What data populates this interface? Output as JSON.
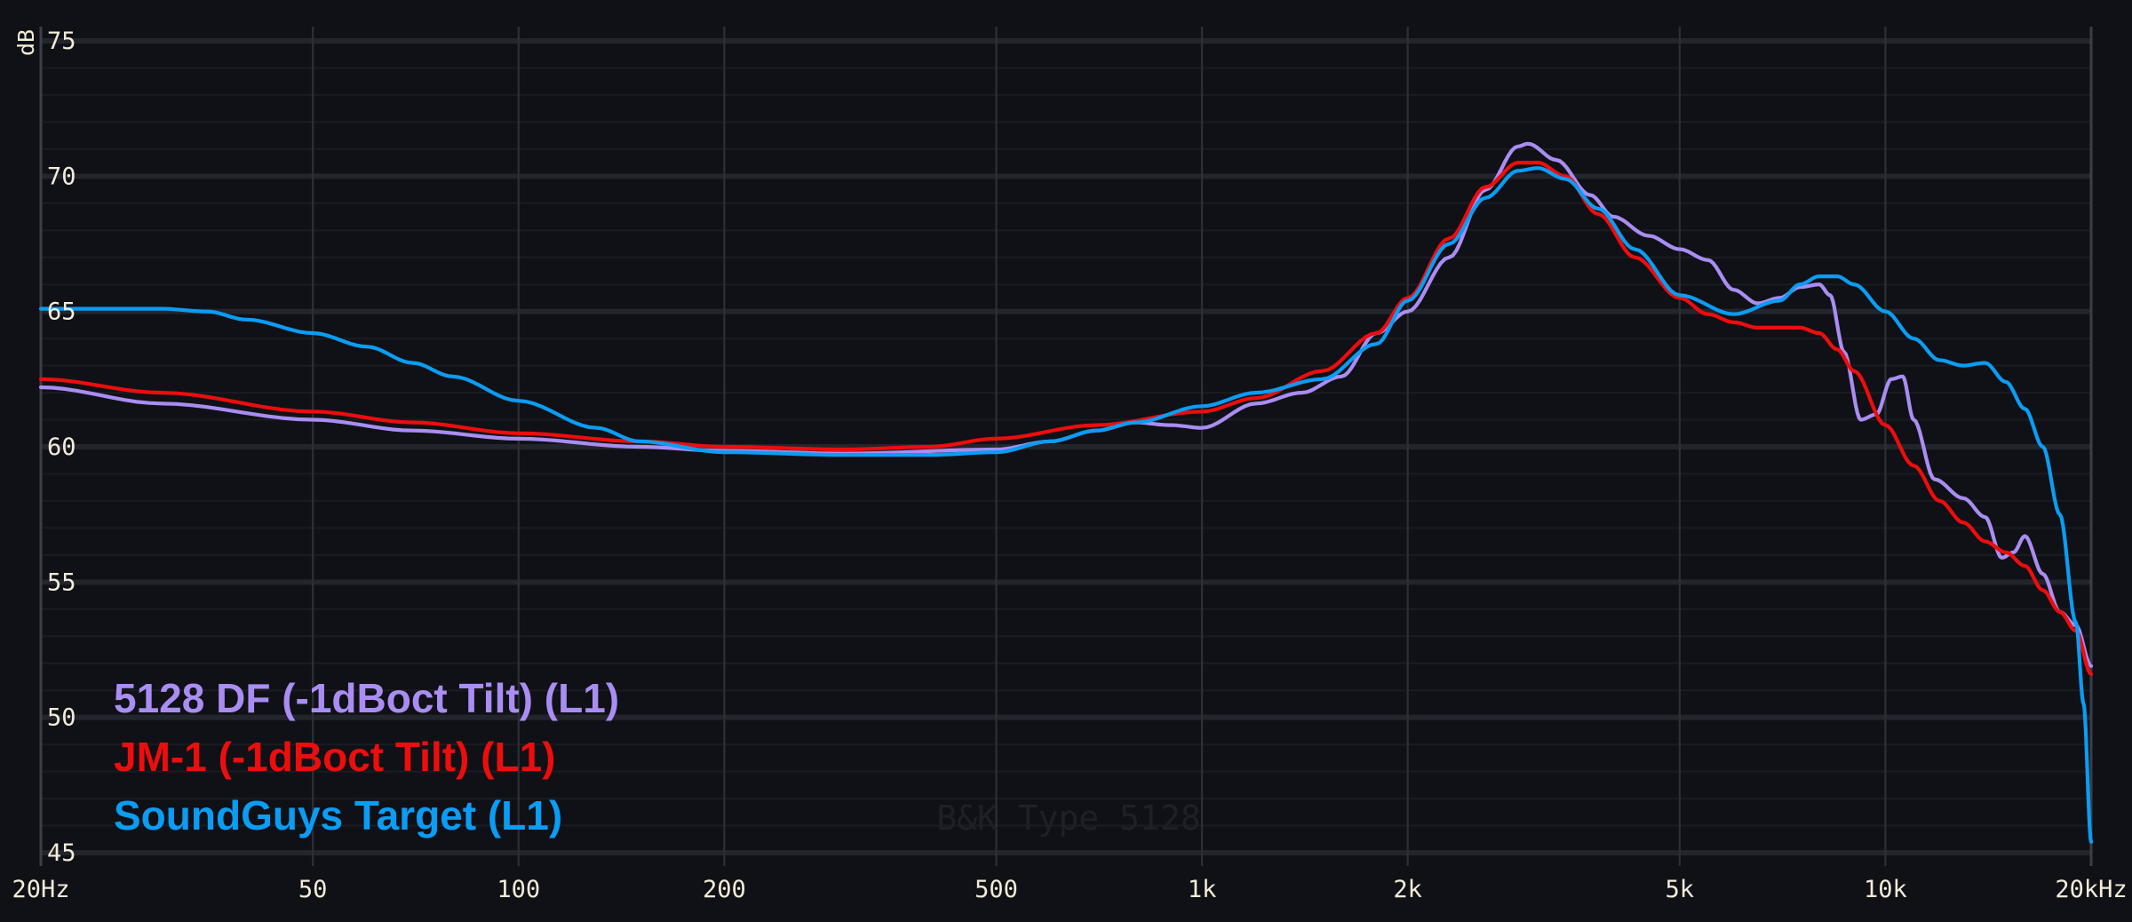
{
  "chart_data": {
    "type": "line",
    "ylabel": "dB",
    "watermark": "B&K Type 5128",
    "xscale": "log",
    "xlim": [
      20,
      20000
    ],
    "ylim": [
      45,
      75
    ],
    "grid": true,
    "legend_position": "bottom-left",
    "x_ticks": [
      {
        "value": 20,
        "label": "20Hz"
      },
      {
        "value": 50,
        "label": "50"
      },
      {
        "value": 100,
        "label": "100"
      },
      {
        "value": 200,
        "label": "200"
      },
      {
        "value": 500,
        "label": "500"
      },
      {
        "value": 1000,
        "label": "1k"
      },
      {
        "value": 2000,
        "label": "2k"
      },
      {
        "value": 5000,
        "label": "5k"
      },
      {
        "value": 10000,
        "label": "10k"
      },
      {
        "value": 20000,
        "label": "20kHz"
      }
    ],
    "y_ticks": [
      {
        "value": 75,
        "label": "75"
      },
      {
        "value": 70,
        "label": "70"
      },
      {
        "value": 65,
        "label": "65"
      },
      {
        "value": 60,
        "label": "60"
      },
      {
        "value": 55,
        "label": "55"
      },
      {
        "value": 50,
        "label": "50"
      },
      {
        "value": 45,
        "label": "45"
      }
    ],
    "series": [
      {
        "name": "5128 DF (-1dBoct Tilt) (L1)",
        "color": "#a98df2",
        "points": [
          [
            20,
            62.2
          ],
          [
            30,
            61.6
          ],
          [
            50,
            61.0
          ],
          [
            70,
            60.6
          ],
          [
            100,
            60.3
          ],
          [
            150,
            60.0
          ],
          [
            200,
            59.85
          ],
          [
            300,
            59.75
          ],
          [
            500,
            59.9
          ],
          [
            600,
            60.2
          ],
          [
            700,
            60.6
          ],
          [
            800,
            60.9
          ],
          [
            900,
            60.8
          ],
          [
            1000,
            60.7
          ],
          [
            1200,
            61.6
          ],
          [
            1400,
            62.0
          ],
          [
            1600,
            62.6
          ],
          [
            1800,
            64.2
          ],
          [
            2000,
            65.0
          ],
          [
            2300,
            67.0
          ],
          [
            2600,
            69.5
          ],
          [
            2900,
            71.1
          ],
          [
            3000,
            71.2
          ],
          [
            3300,
            70.6
          ],
          [
            3700,
            69.3
          ],
          [
            4000,
            68.5
          ],
          [
            4500,
            67.8
          ],
          [
            5000,
            67.3
          ],
          [
            5500,
            66.9
          ],
          [
            6000,
            65.8
          ],
          [
            6500,
            65.3
          ],
          [
            7000,
            65.5
          ],
          [
            7500,
            65.9
          ],
          [
            8000,
            66.0
          ],
          [
            8300,
            65.6
          ],
          [
            8700,
            63.5
          ],
          [
            9200,
            61.0
          ],
          [
            9700,
            61.2
          ],
          [
            10200,
            62.5
          ],
          [
            10600,
            62.6
          ],
          [
            11000,
            61.0
          ],
          [
            11800,
            58.8
          ],
          [
            13000,
            58.1
          ],
          [
            14000,
            57.4
          ],
          [
            14800,
            55.9
          ],
          [
            15400,
            56.1
          ],
          [
            16000,
            56.7
          ],
          [
            17000,
            55.3
          ],
          [
            18000,
            53.9
          ],
          [
            19000,
            53.4
          ],
          [
            20000,
            51.9
          ]
        ]
      },
      {
        "name": "JM-1 (-1dBoct Tilt) (L1)",
        "color": "#ed0d0d",
        "points": [
          [
            20,
            62.5
          ],
          [
            30,
            62.0
          ],
          [
            50,
            61.3
          ],
          [
            70,
            60.9
          ],
          [
            100,
            60.5
          ],
          [
            150,
            60.2
          ],
          [
            200,
            60.0
          ],
          [
            300,
            59.9
          ],
          [
            400,
            60.0
          ],
          [
            500,
            60.3
          ],
          [
            700,
            60.8
          ],
          [
            1000,
            61.3
          ],
          [
            1200,
            61.8
          ],
          [
            1500,
            62.8
          ],
          [
            1800,
            64.2
          ],
          [
            2000,
            65.5
          ],
          [
            2300,
            67.7
          ],
          [
            2600,
            69.6
          ],
          [
            2900,
            70.5
          ],
          [
            3100,
            70.5
          ],
          [
            3400,
            70.0
          ],
          [
            3800,
            68.6
          ],
          [
            4300,
            67.0
          ],
          [
            5000,
            65.5
          ],
          [
            5500,
            64.9
          ],
          [
            6000,
            64.6
          ],
          [
            6500,
            64.4
          ],
          [
            7000,
            64.4
          ],
          [
            7500,
            64.4
          ],
          [
            8000,
            64.2
          ],
          [
            8500,
            63.6
          ],
          [
            9000,
            62.8
          ],
          [
            10000,
            60.8
          ],
          [
            11000,
            59.3
          ],
          [
            12000,
            58.0
          ],
          [
            13000,
            57.2
          ],
          [
            14000,
            56.5
          ],
          [
            15000,
            56.1
          ],
          [
            16000,
            55.6
          ],
          [
            17000,
            54.7
          ],
          [
            18000,
            53.9
          ],
          [
            19000,
            53.2
          ],
          [
            20000,
            51.6
          ]
        ]
      },
      {
        "name": "SoundGuys Target (L1)",
        "color": "#0b9cf4",
        "points": [
          [
            20,
            65.1
          ],
          [
            25,
            65.1
          ],
          [
            30,
            65.1
          ],
          [
            35,
            65.0
          ],
          [
            40,
            64.7
          ],
          [
            50,
            64.2
          ],
          [
            60,
            63.7
          ],
          [
            70,
            63.1
          ],
          [
            80,
            62.6
          ],
          [
            100,
            61.7
          ],
          [
            130,
            60.7
          ],
          [
            150,
            60.2
          ],
          [
            200,
            59.8
          ],
          [
            300,
            59.7
          ],
          [
            400,
            59.7
          ],
          [
            500,
            59.8
          ],
          [
            600,
            60.2
          ],
          [
            700,
            60.6
          ],
          [
            800,
            60.9
          ],
          [
            1000,
            61.5
          ],
          [
            1200,
            62.0
          ],
          [
            1500,
            62.5
          ],
          [
            1800,
            63.8
          ],
          [
            2000,
            65.4
          ],
          [
            2300,
            67.5
          ],
          [
            2600,
            69.2
          ],
          [
            2900,
            70.2
          ],
          [
            3100,
            70.3
          ],
          [
            3400,
            69.9
          ],
          [
            3800,
            68.8
          ],
          [
            4300,
            67.3
          ],
          [
            5000,
            65.6
          ],
          [
            6000,
            64.9
          ],
          [
            7000,
            65.4
          ],
          [
            7500,
            66.0
          ],
          [
            8000,
            66.3
          ],
          [
            8500,
            66.3
          ],
          [
            9000,
            66.0
          ],
          [
            10000,
            65.0
          ],
          [
            11000,
            64.0
          ],
          [
            12000,
            63.2
          ],
          [
            13000,
            63.0
          ],
          [
            14000,
            63.1
          ],
          [
            15000,
            62.4
          ],
          [
            16000,
            61.4
          ],
          [
            17000,
            60.0
          ],
          [
            18000,
            57.5
          ],
          [
            19000,
            53.5
          ],
          [
            19500,
            50.5
          ],
          [
            20000,
            45.4
          ]
        ]
      }
    ]
  }
}
